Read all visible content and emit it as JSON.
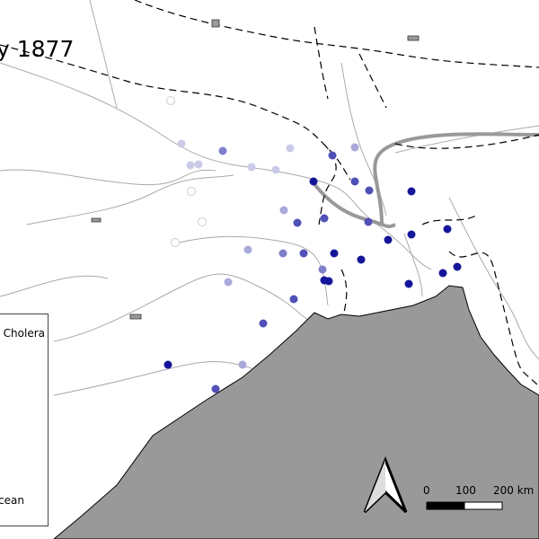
{
  "title": "y 1877",
  "legend": {
    "entry_label": "Cholera",
    "ocean_label": "cean"
  },
  "scale_bar": {
    "labels": [
      "0",
      "100",
      "200 km"
    ]
  },
  "north_arrow": "north-arrow-icon",
  "colors": {
    "ocean": "#999999",
    "river": "#aaaaaa",
    "border": "#000000",
    "levels": [
      "#ffffff",
      "#cacae8",
      "#a9a9da",
      "#7f7fcc",
      "#5050b8",
      "#15159a"
    ]
  },
  "sites": [
    {
      "level": 0
    },
    {
      "level": 1
    },
    {
      "level": 3
    },
    {
      "level": 1
    },
    {
      "level": 2
    },
    {
      "level": 4
    },
    {
      "level": 1
    },
    {
      "level": 1
    },
    {
      "level": 1
    },
    {
      "level": 1
    },
    {
      "level": 5
    },
    {
      "level": 4
    },
    {
      "level": 4
    },
    {
      "level": 5
    },
    {
      "level": 0
    },
    {
      "level": 2
    },
    {
      "level": 4
    },
    {
      "level": 4
    },
    {
      "level": 4
    },
    {
      "level": 0
    },
    {
      "level": 0
    },
    {
      "level": 5
    },
    {
      "level": 5
    },
    {
      "level": 5
    },
    {
      "level": 2
    },
    {
      "level": 3
    },
    {
      "level": 4
    },
    {
      "level": 5
    },
    {
      "level": 5
    },
    {
      "level": 3
    },
    {
      "level": 5
    },
    {
      "level": 5
    },
    {
      "level": 5
    },
    {
      "level": 5
    },
    {
      "level": 5
    },
    {
      "level": 2
    },
    {
      "level": 4
    },
    {
      "level": 4
    },
    {
      "level": 5
    },
    {
      "level": 2
    },
    {
      "level": 4
    }
  ]
}
